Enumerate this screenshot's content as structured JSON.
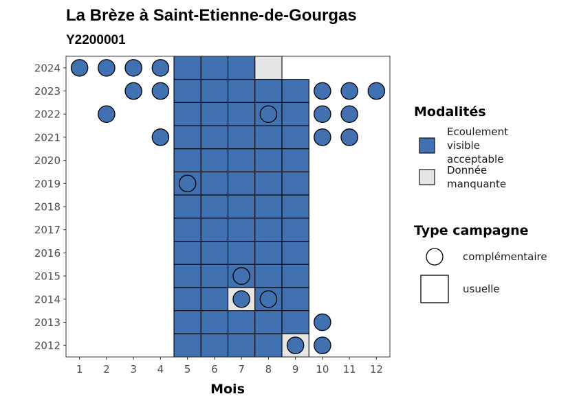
{
  "chart_data": {
    "type": "heatmap",
    "title": "La Brèze à Saint-Etienne-de-Gourgas",
    "subtitle": "Y2200001",
    "xlabel": "Mois",
    "ylabel": "",
    "x_ticks": [
      "1",
      "2",
      "3",
      "4",
      "5",
      "6",
      "7",
      "8",
      "9",
      "10",
      "11",
      "12"
    ],
    "y_ticks": [
      "2012",
      "2013",
      "2014",
      "2015",
      "2016",
      "2017",
      "2018",
      "2019",
      "2020",
      "2021",
      "2022",
      "2023",
      "2024"
    ],
    "xlim": [
      0.5,
      12.5
    ],
    "ylim": [
      2011.5,
      2024.5
    ],
    "grid": false,
    "legend_position": "right",
    "modalites": {
      "title": "Modalités",
      "entries": [
        {
          "key": "ecoulement",
          "label": "Ecoulement visible acceptable",
          "lines": [
            "Ecoulement",
            "visible",
            "acceptable"
          ],
          "color": "#4271b2"
        },
        {
          "key": "manquante",
          "label": "Donnée manquante",
          "lines": [
            "Donnée",
            "manquante"
          ],
          "color": "#e6e6e6"
        }
      ]
    },
    "type_campagne": {
      "title": "Type campagne",
      "entries": [
        {
          "key": "complementaire",
          "label": "complémentaire",
          "shape": "circle"
        },
        {
          "key": "usuelle",
          "label": "usuelle",
          "shape": "square"
        }
      ]
    },
    "points": [
      {
        "year": 2024,
        "month": 1,
        "type": "complementaire",
        "modalite": "ecoulement"
      },
      {
        "year": 2024,
        "month": 2,
        "type": "complementaire",
        "modalite": "ecoulement"
      },
      {
        "year": 2024,
        "month": 3,
        "type": "complementaire",
        "modalite": "ecoulement"
      },
      {
        "year": 2024,
        "month": 4,
        "type": "complementaire",
        "modalite": "ecoulement"
      },
      {
        "year": 2024,
        "month": 5,
        "type": "usuelle",
        "modalite": "ecoulement"
      },
      {
        "year": 2024,
        "month": 6,
        "type": "usuelle",
        "modalite": "ecoulement"
      },
      {
        "year": 2024,
        "month": 7,
        "type": "usuelle",
        "modalite": "ecoulement"
      },
      {
        "year": 2024,
        "month": 8,
        "type": "usuelle",
        "modalite": "manquante"
      },
      {
        "year": 2023,
        "month": 3,
        "type": "complementaire",
        "modalite": "ecoulement"
      },
      {
        "year": 2023,
        "month": 4,
        "type": "complementaire",
        "modalite": "ecoulement"
      },
      {
        "year": 2023,
        "month": 5,
        "type": "usuelle",
        "modalite": "ecoulement"
      },
      {
        "year": 2023,
        "month": 6,
        "type": "usuelle",
        "modalite": "ecoulement"
      },
      {
        "year": 2023,
        "month": 7,
        "type": "usuelle",
        "modalite": "ecoulement"
      },
      {
        "year": 2023,
        "month": 8,
        "type": "usuelle",
        "modalite": "ecoulement"
      },
      {
        "year": 2023,
        "month": 9,
        "type": "usuelle",
        "modalite": "ecoulement"
      },
      {
        "year": 2023,
        "month": 10,
        "type": "complementaire",
        "modalite": "ecoulement"
      },
      {
        "year": 2023,
        "month": 11,
        "type": "complementaire",
        "modalite": "ecoulement"
      },
      {
        "year": 2023,
        "month": 12,
        "type": "complementaire",
        "modalite": "ecoulement"
      },
      {
        "year": 2022,
        "month": 2,
        "type": "complementaire",
        "modalite": "ecoulement"
      },
      {
        "year": 2022,
        "month": 5,
        "type": "usuelle",
        "modalite": "ecoulement"
      },
      {
        "year": 2022,
        "month": 6,
        "type": "usuelle",
        "modalite": "ecoulement"
      },
      {
        "year": 2022,
        "month": 7,
        "type": "usuelle",
        "modalite": "ecoulement"
      },
      {
        "year": 2022,
        "month": 8,
        "type": "usuelle",
        "modalite": "ecoulement"
      },
      {
        "year": 2022,
        "month": 9,
        "type": "usuelle",
        "modalite": "ecoulement"
      },
      {
        "year": 2022,
        "month": 8,
        "type": "complementaire",
        "modalite": "ecoulement"
      },
      {
        "year": 2022,
        "month": 10,
        "type": "complementaire",
        "modalite": "ecoulement"
      },
      {
        "year": 2022,
        "month": 11,
        "type": "complementaire",
        "modalite": "ecoulement"
      },
      {
        "year": 2021,
        "month": 4,
        "type": "complementaire",
        "modalite": "ecoulement"
      },
      {
        "year": 2021,
        "month": 5,
        "type": "usuelle",
        "modalite": "ecoulement"
      },
      {
        "year": 2021,
        "month": 6,
        "type": "usuelle",
        "modalite": "ecoulement"
      },
      {
        "year": 2021,
        "month": 7,
        "type": "usuelle",
        "modalite": "ecoulement"
      },
      {
        "year": 2021,
        "month": 8,
        "type": "usuelle",
        "modalite": "ecoulement"
      },
      {
        "year": 2021,
        "month": 9,
        "type": "usuelle",
        "modalite": "ecoulement"
      },
      {
        "year": 2021,
        "month": 10,
        "type": "complementaire",
        "modalite": "ecoulement"
      },
      {
        "year": 2021,
        "month": 11,
        "type": "complementaire",
        "modalite": "ecoulement"
      },
      {
        "year": 2020,
        "month": 5,
        "type": "usuelle",
        "modalite": "ecoulement"
      },
      {
        "year": 2020,
        "month": 6,
        "type": "usuelle",
        "modalite": "ecoulement"
      },
      {
        "year": 2020,
        "month": 7,
        "type": "usuelle",
        "modalite": "ecoulement"
      },
      {
        "year": 2020,
        "month": 8,
        "type": "usuelle",
        "modalite": "ecoulement"
      },
      {
        "year": 2020,
        "month": 9,
        "type": "usuelle",
        "modalite": "ecoulement"
      },
      {
        "year": 2019,
        "month": 5,
        "type": "usuelle",
        "modalite": "ecoulement"
      },
      {
        "year": 2019,
        "month": 6,
        "type": "usuelle",
        "modalite": "ecoulement"
      },
      {
        "year": 2019,
        "month": 7,
        "type": "usuelle",
        "modalite": "ecoulement"
      },
      {
        "year": 2019,
        "month": 8,
        "type": "usuelle",
        "modalite": "ecoulement"
      },
      {
        "year": 2019,
        "month": 9,
        "type": "usuelle",
        "modalite": "ecoulement"
      },
      {
        "year": 2019,
        "month": 5,
        "type": "complementaire",
        "modalite": "ecoulement"
      },
      {
        "year": 2018,
        "month": 5,
        "type": "usuelle",
        "modalite": "ecoulement"
      },
      {
        "year": 2018,
        "month": 6,
        "type": "usuelle",
        "modalite": "ecoulement"
      },
      {
        "year": 2018,
        "month": 7,
        "type": "usuelle",
        "modalite": "ecoulement"
      },
      {
        "year": 2018,
        "month": 8,
        "type": "usuelle",
        "modalite": "ecoulement"
      },
      {
        "year": 2018,
        "month": 9,
        "type": "usuelle",
        "modalite": "ecoulement"
      },
      {
        "year": 2017,
        "month": 5,
        "type": "usuelle",
        "modalite": "ecoulement"
      },
      {
        "year": 2017,
        "month": 6,
        "type": "usuelle",
        "modalite": "ecoulement"
      },
      {
        "year": 2017,
        "month": 7,
        "type": "usuelle",
        "modalite": "ecoulement"
      },
      {
        "year": 2017,
        "month": 8,
        "type": "usuelle",
        "modalite": "ecoulement"
      },
      {
        "year": 2017,
        "month": 9,
        "type": "usuelle",
        "modalite": "ecoulement"
      },
      {
        "year": 2016,
        "month": 5,
        "type": "usuelle",
        "modalite": "ecoulement"
      },
      {
        "year": 2016,
        "month": 6,
        "type": "usuelle",
        "modalite": "ecoulement"
      },
      {
        "year": 2016,
        "month": 7,
        "type": "usuelle",
        "modalite": "ecoulement"
      },
      {
        "year": 2016,
        "month": 8,
        "type": "usuelle",
        "modalite": "ecoulement"
      },
      {
        "year": 2016,
        "month": 9,
        "type": "usuelle",
        "modalite": "ecoulement"
      },
      {
        "year": 2015,
        "month": 5,
        "type": "usuelle",
        "modalite": "ecoulement"
      },
      {
        "year": 2015,
        "month": 6,
        "type": "usuelle",
        "modalite": "ecoulement"
      },
      {
        "year": 2015,
        "month": 7,
        "type": "usuelle",
        "modalite": "ecoulement"
      },
      {
        "year": 2015,
        "month": 8,
        "type": "usuelle",
        "modalite": "ecoulement"
      },
      {
        "year": 2015,
        "month": 9,
        "type": "usuelle",
        "modalite": "ecoulement"
      },
      {
        "year": 2015,
        "month": 7,
        "type": "complementaire",
        "modalite": "ecoulement"
      },
      {
        "year": 2014,
        "month": 5,
        "type": "usuelle",
        "modalite": "ecoulement"
      },
      {
        "year": 2014,
        "month": 6,
        "type": "usuelle",
        "modalite": "ecoulement"
      },
      {
        "year": 2014,
        "month": 7,
        "type": "usuelle",
        "modalite": "manquante"
      },
      {
        "year": 2014,
        "month": 8,
        "type": "usuelle",
        "modalite": "ecoulement"
      },
      {
        "year": 2014,
        "month": 9,
        "type": "usuelle",
        "modalite": "ecoulement"
      },
      {
        "year": 2014,
        "month": 7,
        "type": "complementaire",
        "modalite": "ecoulement"
      },
      {
        "year": 2014,
        "month": 8,
        "type": "complementaire",
        "modalite": "ecoulement"
      },
      {
        "year": 2013,
        "month": 5,
        "type": "usuelle",
        "modalite": "ecoulement"
      },
      {
        "year": 2013,
        "month": 6,
        "type": "usuelle",
        "modalite": "ecoulement"
      },
      {
        "year": 2013,
        "month": 7,
        "type": "usuelle",
        "modalite": "ecoulement"
      },
      {
        "year": 2013,
        "month": 8,
        "type": "usuelle",
        "modalite": "ecoulement"
      },
      {
        "year": 2013,
        "month": 9,
        "type": "usuelle",
        "modalite": "ecoulement"
      },
      {
        "year": 2013,
        "month": 10,
        "type": "complementaire",
        "modalite": "ecoulement"
      },
      {
        "year": 2012,
        "month": 5,
        "type": "usuelle",
        "modalite": "ecoulement"
      },
      {
        "year": 2012,
        "month": 6,
        "type": "usuelle",
        "modalite": "ecoulement"
      },
      {
        "year": 2012,
        "month": 7,
        "type": "usuelle",
        "modalite": "ecoulement"
      },
      {
        "year": 2012,
        "month": 8,
        "type": "usuelle",
        "modalite": "ecoulement"
      },
      {
        "year": 2012,
        "month": 9,
        "type": "usuelle",
        "modalite": "manquante"
      },
      {
        "year": 2012,
        "month": 9,
        "type": "complementaire",
        "modalite": "ecoulement"
      },
      {
        "year": 2012,
        "month": 10,
        "type": "complementaire",
        "modalite": "ecoulement"
      }
    ]
  }
}
